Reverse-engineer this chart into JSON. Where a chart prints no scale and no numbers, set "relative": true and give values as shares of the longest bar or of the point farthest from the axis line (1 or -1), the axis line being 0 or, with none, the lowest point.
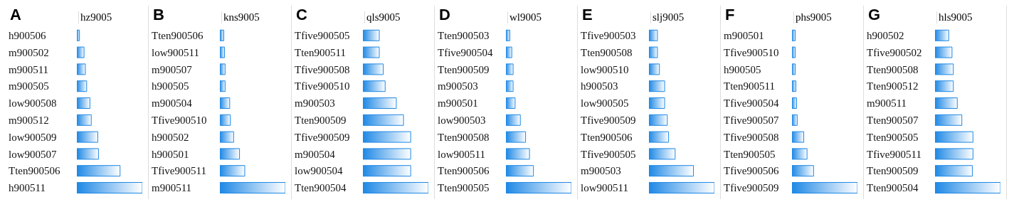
{
  "chart_data": [
    {
      "type": "bar",
      "orientation": "horizontal",
      "relative": true,
      "title": "A",
      "xlabel": "hz9005",
      "categories": [
        "h900506",
        "m900502",
        "m900511",
        "m900505",
        "low900508",
        "m900512",
        "low900509",
        "low900507",
        "Tten900506",
        "h900511"
      ],
      "values": [
        0.04,
        0.11,
        0.13,
        0.15,
        0.2,
        0.22,
        0.32,
        0.33,
        0.66,
        1
      ],
      "color": "#1e88e5"
    },
    {
      "type": "bar",
      "orientation": "horizontal",
      "relative": true,
      "title": "B",
      "xlabel": "kns9005",
      "categories": [
        "Tten900506",
        "low900511",
        "m900507",
        "h900505",
        "m900504",
        "Tfive900510",
        "h900502",
        "h900501",
        "Tfive900511",
        "m900511"
      ],
      "values": [
        0.06,
        0.07,
        0.08,
        0.08,
        0.15,
        0.16,
        0.21,
        0.3,
        0.38,
        1
      ],
      "color": "#1e88e5"
    },
    {
      "type": "bar",
      "orientation": "horizontal",
      "relative": true,
      "title": "C",
      "xlabel": "qls9005",
      "categories": [
        "Tfive900505",
        "Tten900511",
        "Tfive900508",
        "Tfive900510",
        "m900503",
        "Tten900509",
        "Tfive900509",
        "m900504",
        "low900504",
        "Tten900504"
      ],
      "values": [
        0.25,
        0.25,
        0.31,
        0.34,
        0.51,
        0.62,
        0.73,
        0.73,
        0.73,
        1
      ],
      "color": "#1e88e5"
    },
    {
      "type": "bar",
      "orientation": "horizontal",
      "relative": true,
      "title": "D",
      "xlabel": "wl9005",
      "categories": [
        "Tten900503",
        "Tfive900504",
        "Tten900509",
        "m900503",
        "m900501",
        "low900503",
        "Tten900508",
        "low900511",
        "Tten900506",
        "Tten900505"
      ],
      "values": [
        0.06,
        0.09,
        0.11,
        0.11,
        0.14,
        0.22,
        0.3,
        0.36,
        0.42,
        1
      ],
      "color": "#1e88e5"
    },
    {
      "type": "bar",
      "orientation": "horizontal",
      "relative": true,
      "title": "E",
      "xlabel": "slj9005",
      "categories": [
        "Tfive900503",
        "Tten900508",
        "low900510",
        "h900503",
        "low900505",
        "Tfive900509",
        "Tten900506",
        "Tfive900505",
        "m900503",
        "low900511"
      ],
      "values": [
        0.13,
        0.13,
        0.16,
        0.24,
        0.24,
        0.28,
        0.3,
        0.4,
        0.68,
        1
      ],
      "color": "#1e88e5"
    },
    {
      "type": "bar",
      "orientation": "horizontal",
      "relative": true,
      "title": "F",
      "xlabel": "phs9005",
      "categories": [
        "m900501",
        "Tfive900510",
        "h900505",
        "Tten900511",
        "Tfive900504",
        "Tfive900507",
        "Tfive900508",
        "Tten900505",
        "Tfive900506",
        "Tfive900509"
      ],
      "values": [
        0.05,
        0.05,
        0.05,
        0.06,
        0.07,
        0.08,
        0.18,
        0.23,
        0.33,
        1
      ],
      "color": "#1e88e5"
    },
    {
      "type": "bar",
      "orientation": "horizontal",
      "relative": true,
      "title": "G",
      "xlabel": "hls9005",
      "categories": [
        "h900502",
        "Tfive900502",
        "Tten900508",
        "Tten900512",
        "m900511",
        "Tten900507",
        "Tten900505",
        "Tfive900511",
        "Tten900509",
        "Tten900504"
      ],
      "values": [
        0.21,
        0.26,
        0.28,
        0.28,
        0.34,
        0.41,
        0.58,
        0.58,
        0.57,
        1
      ],
      "color": "#1e88e5"
    }
  ]
}
